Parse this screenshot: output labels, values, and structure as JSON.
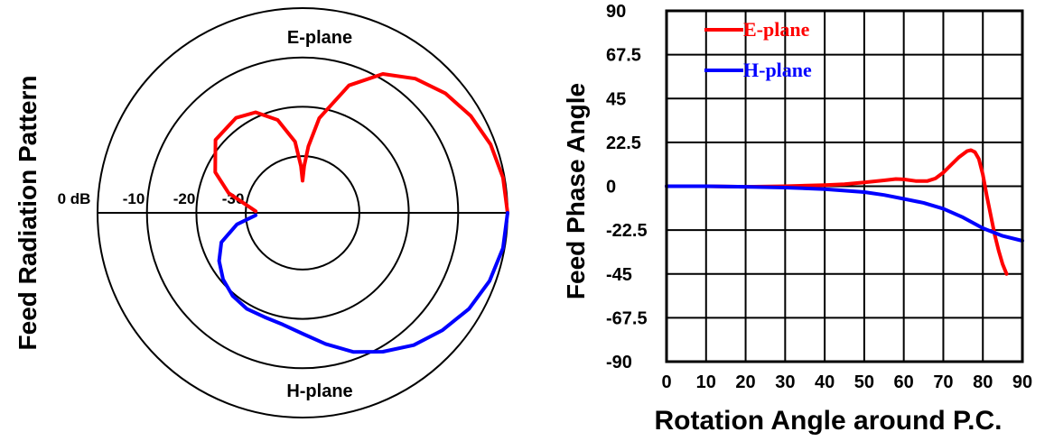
{
  "chart_data": [
    {
      "type": "polar",
      "title": "",
      "ylabel": "Feed Radiation Pattern",
      "top_label": "E-plane",
      "bottom_label": "H-plane",
      "ring_labels": [
        "0 dB",
        "-10",
        "-20",
        "-30"
      ],
      "ring_values_db": [
        0,
        -10,
        -20,
        -30
      ],
      "series": [
        {
          "name": "E-plane",
          "color": "#ff0000",
          "points": [
            {
              "angle_deg": 0,
              "db": 0
            },
            {
              "angle_deg": 10,
              "db": -0.3
            },
            {
              "angle_deg": 20,
              "db": -1
            },
            {
              "angle_deg": 30,
              "db": -2.2
            },
            {
              "angle_deg": 40,
              "db": -3.8
            },
            {
              "angle_deg": 50,
              "db": -6
            },
            {
              "angle_deg": 60,
              "db": -9
            },
            {
              "angle_deg": 70,
              "db": -14
            },
            {
              "angle_deg": 80,
              "db": -22
            },
            {
              "angle_deg": 85,
              "db": -28
            },
            {
              "angle_deg": 88,
              "db": -32
            },
            {
              "angle_deg": 90,
              "db": -35
            },
            {
              "angle_deg": 92,
              "db": -32
            },
            {
              "angle_deg": 96,
              "db": -27
            },
            {
              "angle_deg": 105,
              "db": -22
            },
            {
              "angle_deg": 115,
              "db": -19
            },
            {
              "angle_deg": 125,
              "db": -18
            },
            {
              "angle_deg": 140,
              "db": -18.5
            },
            {
              "angle_deg": 155,
              "db": -22
            },
            {
              "angle_deg": 165,
              "db": -26
            },
            {
              "angle_deg": 172,
              "db": -30
            },
            {
              "angle_deg": 178,
              "db": -32
            }
          ]
        },
        {
          "name": "H-plane",
          "color": "#0000ff",
          "points": [
            {
              "angle_deg": 0,
              "db": 0
            },
            {
              "angle_deg": -10,
              "db": -0.3
            },
            {
              "angle_deg": -20,
              "db": -1.2
            },
            {
              "angle_deg": -30,
              "db": -2.6
            },
            {
              "angle_deg": -40,
              "db": -4.5
            },
            {
              "angle_deg": -50,
              "db": -6.5
            },
            {
              "angle_deg": -60,
              "db": -9
            },
            {
              "angle_deg": -70,
              "db": -11.5
            },
            {
              "angle_deg": -80,
              "db": -14.5
            },
            {
              "angle_deg": -90,
              "db": -17
            },
            {
              "angle_deg": -100,
              "db": -18.5
            },
            {
              "angle_deg": -110,
              "db": -19
            },
            {
              "angle_deg": -120,
              "db": -19
            },
            {
              "angle_deg": -130,
              "db": -19.5
            },
            {
              "angle_deg": -140,
              "db": -20.5
            },
            {
              "angle_deg": -150,
              "db": -22
            },
            {
              "angle_deg": -160,
              "db": -24
            },
            {
              "angle_deg": -170,
              "db": -28
            },
            {
              "angle_deg": -177,
              "db": -32
            }
          ]
        }
      ]
    },
    {
      "type": "line",
      "title": "",
      "xlabel": "Rotation Angle around P.C.",
      "ylabel": "Feed Phase Angle",
      "xlim": [
        0,
        90
      ],
      "ylim": [
        -90,
        90
      ],
      "x_ticks": [
        0,
        10,
        20,
        30,
        40,
        50,
        60,
        70,
        80,
        90
      ],
      "y_ticks": [
        -90,
        -67.5,
        -45,
        -22.5,
        0,
        22.5,
        45,
        67.5,
        90
      ],
      "x_tick_labels": [
        "0",
        "10",
        "20",
        "30",
        "40",
        "50",
        "60",
        "70",
        "80",
        "90"
      ],
      "y_tick_labels": [
        "-90",
        "-67.5",
        "-45",
        "-22.5",
        "0",
        "22.5",
        "45",
        "67.5",
        "90"
      ],
      "grid": true,
      "legend": "top-left",
      "series": [
        {
          "name": "E-plane",
          "color": "#ff0000",
          "x": [
            0,
            10,
            20,
            30,
            40,
            45,
            50,
            55,
            58,
            60,
            63,
            66,
            68,
            70,
            72,
            74,
            76,
            77,
            78,
            79,
            80,
            81,
            82,
            83,
            84,
            85,
            86
          ],
          "y": [
            0,
            0,
            -0.3,
            0,
            0.6,
            1,
            2,
            3,
            3.7,
            3.5,
            2.7,
            2.7,
            4,
            7,
            11,
            15,
            18,
            18.5,
            17.5,
            14,
            6,
            -5,
            -15,
            -25,
            -33,
            -40,
            -45
          ]
        },
        {
          "name": "H-plane",
          "color": "#0000ff",
          "x": [
            0,
            10,
            20,
            30,
            40,
            50,
            55,
            60,
            65,
            70,
            75,
            80,
            85,
            90
          ],
          "y": [
            0,
            0,
            -0.3,
            -0.7,
            -1.5,
            -3,
            -4.5,
            -6.5,
            -8.5,
            -11.5,
            -16,
            -21.5,
            -25.5,
            -28
          ]
        }
      ]
    }
  ]
}
